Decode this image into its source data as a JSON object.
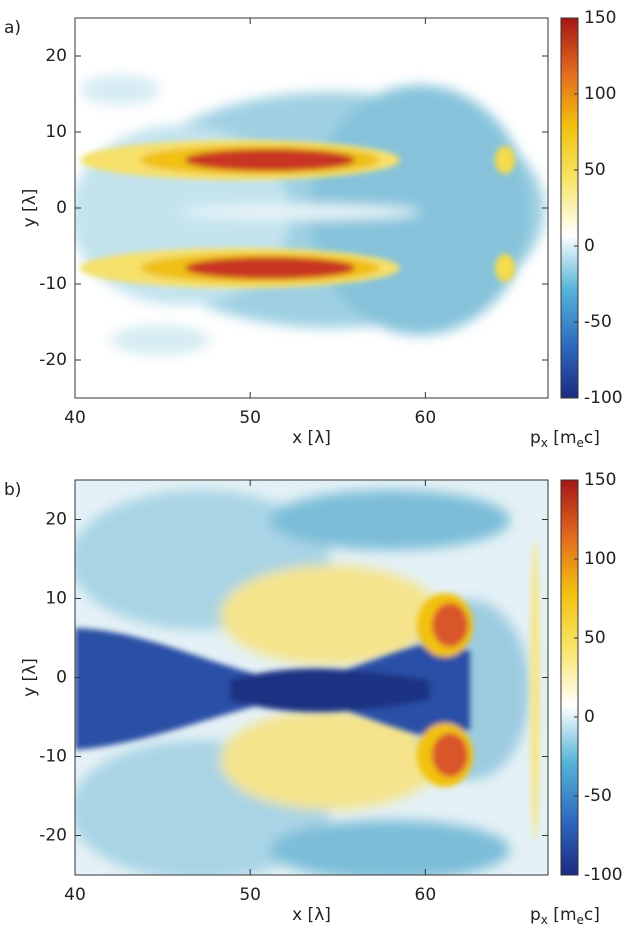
{
  "chart_data": [
    {
      "type": "heatmap",
      "panel_label": "a)",
      "xlabel": "x [λ]",
      "ylabel": "y [λ]",
      "xlim": [
        40,
        67
      ],
      "xticks": [
        40,
        50,
        60
      ],
      "ylim": [
        -25,
        25
      ],
      "yticks": [
        -20,
        -10,
        0,
        10,
        20
      ],
      "clim": [
        -100,
        150
      ],
      "cticks": [
        -100,
        -50,
        0,
        50,
        100,
        150
      ],
      "colorbar_label": [
        "p",
        "x",
        " [m",
        "e",
        "c]"
      ],
      "colormap": [
        "#1c2a80",
        "#2f6cc0",
        "#56b4d8",
        "#ffffff",
        "#f7e56a",
        "#f2c10e",
        "#e36a1e",
        "#a51616"
      ]
    },
    {
      "type": "heatmap",
      "panel_label": "b)",
      "xlabel": "x [λ]",
      "ylabel": "y [λ]",
      "xlim": [
        40,
        67
      ],
      "xticks": [
        40,
        50,
        60
      ],
      "ylim": [
        -25,
        25
      ],
      "yticks": [
        -20,
        -10,
        0,
        10,
        20
      ],
      "clim": [
        -100,
        150
      ],
      "cticks": [
        -100,
        -50,
        0,
        50,
        100,
        150
      ],
      "colorbar_label": [
        "p",
        "x",
        " [m",
        "e",
        "c]"
      ],
      "colormap": [
        "#1c2a80",
        "#2f6cc0",
        "#56b4d8",
        "#ffffff",
        "#f7e56a",
        "#f2c10e",
        "#e36a1e",
        "#a51616"
      ]
    }
  ]
}
